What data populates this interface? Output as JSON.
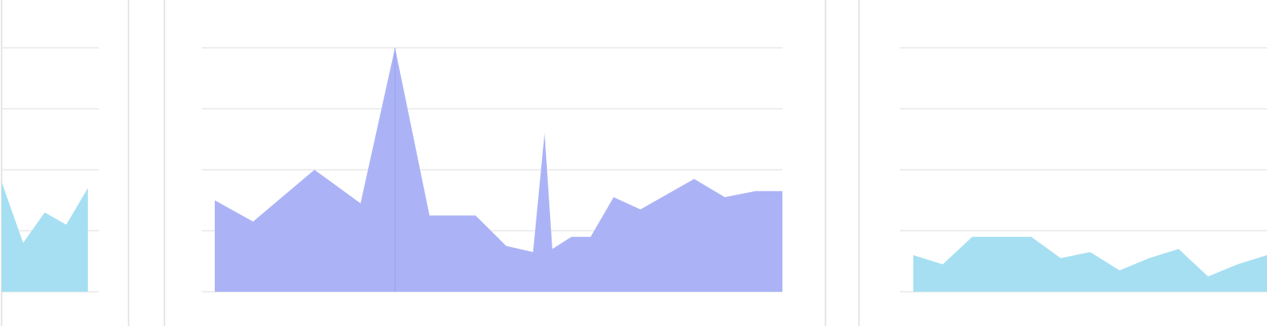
{
  "colors": {
    "panel_left_fill": "#a6dff2",
    "panel_center_fill": "#abb3f6",
    "panel_right_fill": "#a6dff2",
    "gridline": "#e8e8ea",
    "separator": "#e6e6e8",
    "background": "#ffffff"
  },
  "chart_data": [
    {
      "type": "area",
      "ylim": [
        0,
        4
      ],
      "grid": true,
      "x": [
        0,
        1,
        2,
        3,
        4
      ],
      "values": [
        1.8,
        0.8,
        1.3,
        1.1,
        1.7
      ]
    },
    {
      "type": "area",
      "ylim": [
        0,
        4
      ],
      "grid": true,
      "cursor_index": 4,
      "x": [
        0,
        1,
        2,
        3,
        4,
        5,
        6,
        7,
        8,
        9,
        10,
        11,
        12,
        13,
        14,
        15,
        16,
        17,
        18
      ],
      "values": [
        1.5,
        1.15,
        2.0,
        1.45,
        4.0,
        1.25,
        1.25,
        0.75,
        0.65,
        2.6,
        0.7,
        0.9,
        0.9,
        1.55,
        1.35,
        1.85,
        1.55,
        1.65,
        1.65
      ],
      "x_custom": [
        0,
        1,
        2.6,
        3.8,
        4.7,
        5.6,
        6.8,
        7.6,
        8.3,
        8.6,
        8.8,
        9.3,
        9.8,
        10.4,
        11.1,
        12.5,
        13.3,
        14.1,
        14.8
      ]
    },
    {
      "type": "area",
      "ylim": [
        0,
        4
      ],
      "grid": true,
      "x": [
        0,
        1,
        2,
        3,
        4,
        5,
        6,
        7,
        8,
        9,
        10,
        11,
        12
      ],
      "values": [
        0.6,
        0.45,
        0.9,
        0.9,
        0.9,
        0.55,
        0.65,
        0.35,
        0.55,
        0.7,
        0.25,
        0.45,
        0.6
      ]
    }
  ]
}
